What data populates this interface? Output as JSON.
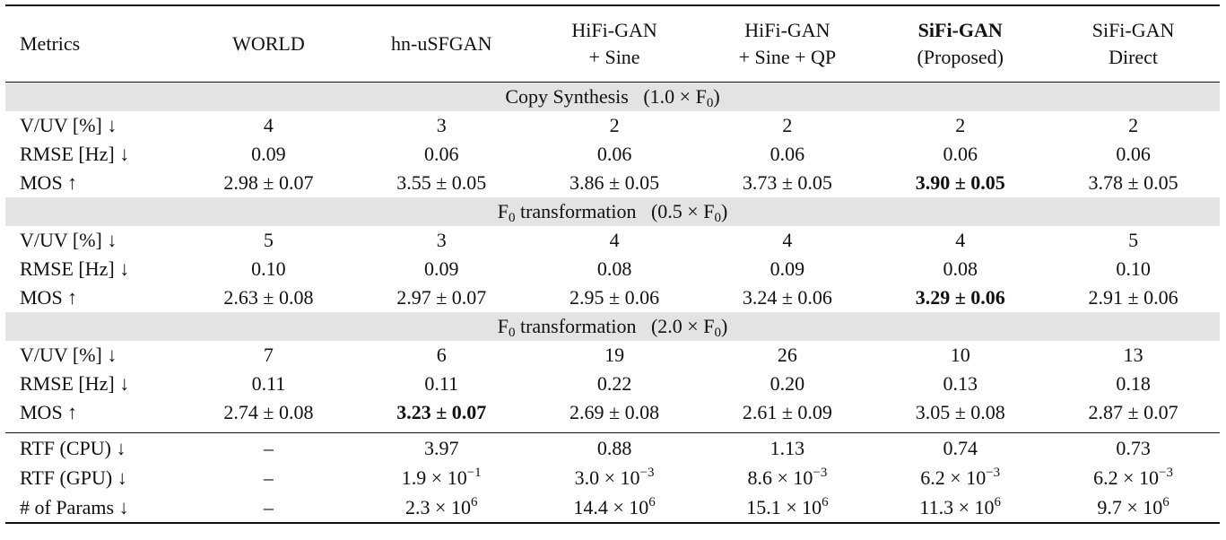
{
  "table": {
    "header": [
      [
        "Metrics"
      ],
      [
        "WORLD"
      ],
      [
        "hn-uSFGAN"
      ],
      [
        "HiFi-GAN",
        "+ Sine"
      ],
      [
        "HiFi-GAN",
        "+ Sine + QP"
      ],
      [
        {
          "text": "SiFi-GAN",
          "style": "bold"
        },
        "(Proposed)"
      ],
      [
        "SiFi-GAN",
        "Direct"
      ]
    ],
    "sections": [
      {
        "title": [
          "Copy Synthesis   (1.0 × F",
          {
            "text": "0",
            "style": "sub"
          },
          ")"
        ],
        "rows": [
          [
            "V/UV [%] ↓",
            "4",
            "3",
            "2",
            "2",
            "2",
            "2"
          ],
          [
            "RMSE [Hz] ↓",
            "0.09",
            "0.06",
            "0.06",
            "0.06",
            "0.06",
            "0.06"
          ],
          [
            "MOS ↑",
            "2.98 ± 0.07",
            "3.55 ± 0.05",
            "3.86 ± 0.05",
            "3.73 ± 0.05",
            [
              {
                "text": "3.90 ± 0.05",
                "style": "bold"
              }
            ],
            "3.78 ± 0.05"
          ]
        ]
      },
      {
        "title": [
          "F",
          {
            "text": "0",
            "style": "sub"
          },
          " transformation   (0.5 × F",
          {
            "text": "0",
            "style": "sub"
          },
          ")"
        ],
        "rows": [
          [
            "V/UV [%] ↓",
            "5",
            "3",
            "4",
            "4",
            "4",
            "5"
          ],
          [
            "RMSE [Hz] ↓",
            "0.10",
            "0.09",
            "0.08",
            "0.09",
            "0.08",
            "0.10"
          ],
          [
            "MOS ↑",
            "2.63 ± 0.08",
            "2.97 ± 0.07",
            "2.95 ± 0.06",
            "3.24 ± 0.06",
            [
              {
                "text": "3.29 ± 0.06",
                "style": "bold"
              }
            ],
            "2.91 ± 0.06"
          ]
        ]
      },
      {
        "title": [
          "F",
          {
            "text": "0",
            "style": "sub"
          },
          " transformation   (2.0 × F",
          {
            "text": "0",
            "style": "sub"
          },
          ")"
        ],
        "rows": [
          [
            "V/UV [%] ↓",
            "7",
            "6",
            "19",
            "26",
            "10",
            "13"
          ],
          [
            "RMSE [Hz] ↓",
            "0.11",
            "0.11",
            "0.22",
            "0.20",
            "0.13",
            "0.18"
          ],
          [
            "MOS ↑",
            "2.74 ± 0.08",
            [
              {
                "text": "3.23 ± 0.07",
                "style": "bold"
              }
            ],
            "2.69 ± 0.08",
            "2.61 ± 0.09",
            "3.05 ± 0.08",
            "2.87 ± 0.07"
          ]
        ]
      }
    ],
    "footer_rows": [
      [
        "RTF (CPU) ↓",
        "–",
        "3.97",
        "0.88",
        "1.13",
        "0.74",
        "0.73"
      ],
      [
        "RTF (GPU) ↓",
        "–",
        [
          "1.9 × 10",
          {
            "text": "−1",
            "style": "sup"
          }
        ],
        [
          "3.0 × 10",
          {
            "text": "−3",
            "style": "sup"
          }
        ],
        [
          "8.6 × 10",
          {
            "text": "−3",
            "style": "sup"
          }
        ],
        [
          "6.2 × 10",
          {
            "text": "−3",
            "style": "sup"
          }
        ],
        [
          "6.2 × 10",
          {
            "text": "−3",
            "style": "sup"
          }
        ]
      ],
      [
        "# of Params ↓",
        "–",
        [
          "2.3 × 10",
          {
            "text": "6",
            "style": "sup"
          }
        ],
        [
          "14.4 × 10",
          {
            "text": "6",
            "style": "sup"
          }
        ],
        [
          "15.1 × 10",
          {
            "text": "6",
            "style": "sup"
          }
        ],
        [
          "11.3 × 10",
          {
            "text": "6",
            "style": "sup"
          }
        ],
        [
          "9.7 × 10",
          {
            "text": "6",
            "style": "sup"
          }
        ]
      ]
    ]
  }
}
